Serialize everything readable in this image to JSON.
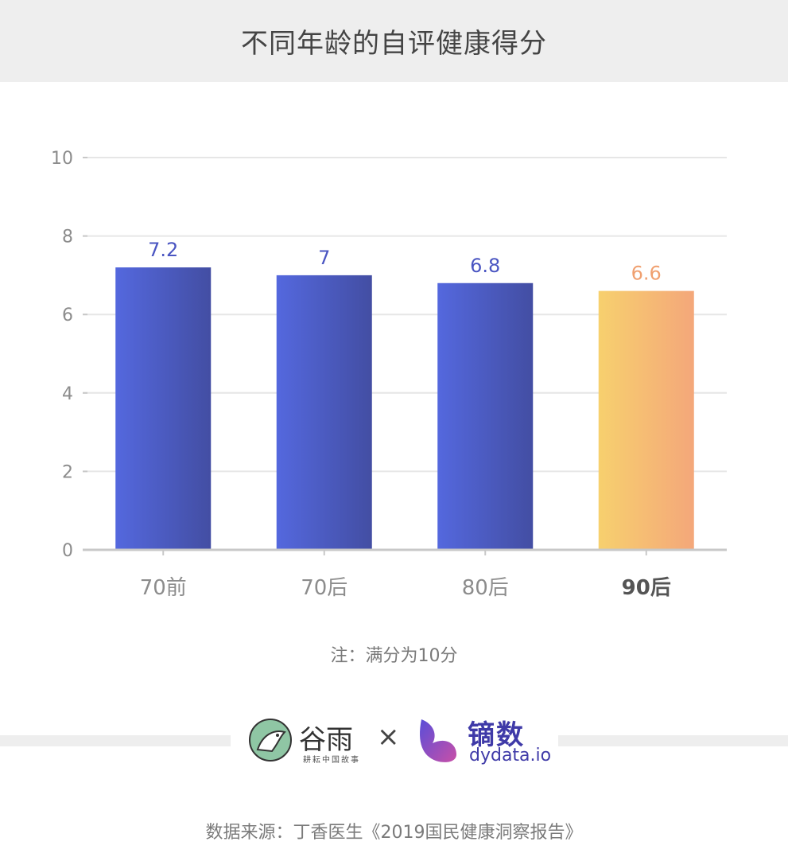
{
  "title": "不同年龄的自评健康得分",
  "note": "注：满分为10分",
  "source": "数据来源：丁香医生《2019国民健康洞察报告》",
  "logos": {
    "guyu_name": "谷雨",
    "guyu_sub": "耕耘中国故事",
    "times": "×",
    "dy_name": "镝数",
    "dy_url": "dydata.io"
  },
  "chart_data": {
    "type": "bar",
    "categories": [
      "70前",
      "70后",
      "80后",
      "90后"
    ],
    "values": [
      7.2,
      7,
      6.8,
      6.6
    ],
    "value_labels": [
      "7.2",
      "7",
      "6.8",
      "6.6"
    ],
    "highlight_index": 3,
    "ylim": [
      0,
      10
    ],
    "yticks": [
      0,
      2,
      4,
      6,
      8,
      10
    ],
    "grid": true,
    "colors": {
      "bar_start": "#5468de",
      "bar_end": "#434ea3",
      "highlight_start": "#f7d06e",
      "highlight_end": "#f4a77a",
      "label": "#4a55c2",
      "highlight_label": "#f0a070",
      "axis": "#c8c8c8",
      "grid": "#e6e6e6",
      "tick_text": "#8c8c8c"
    }
  }
}
